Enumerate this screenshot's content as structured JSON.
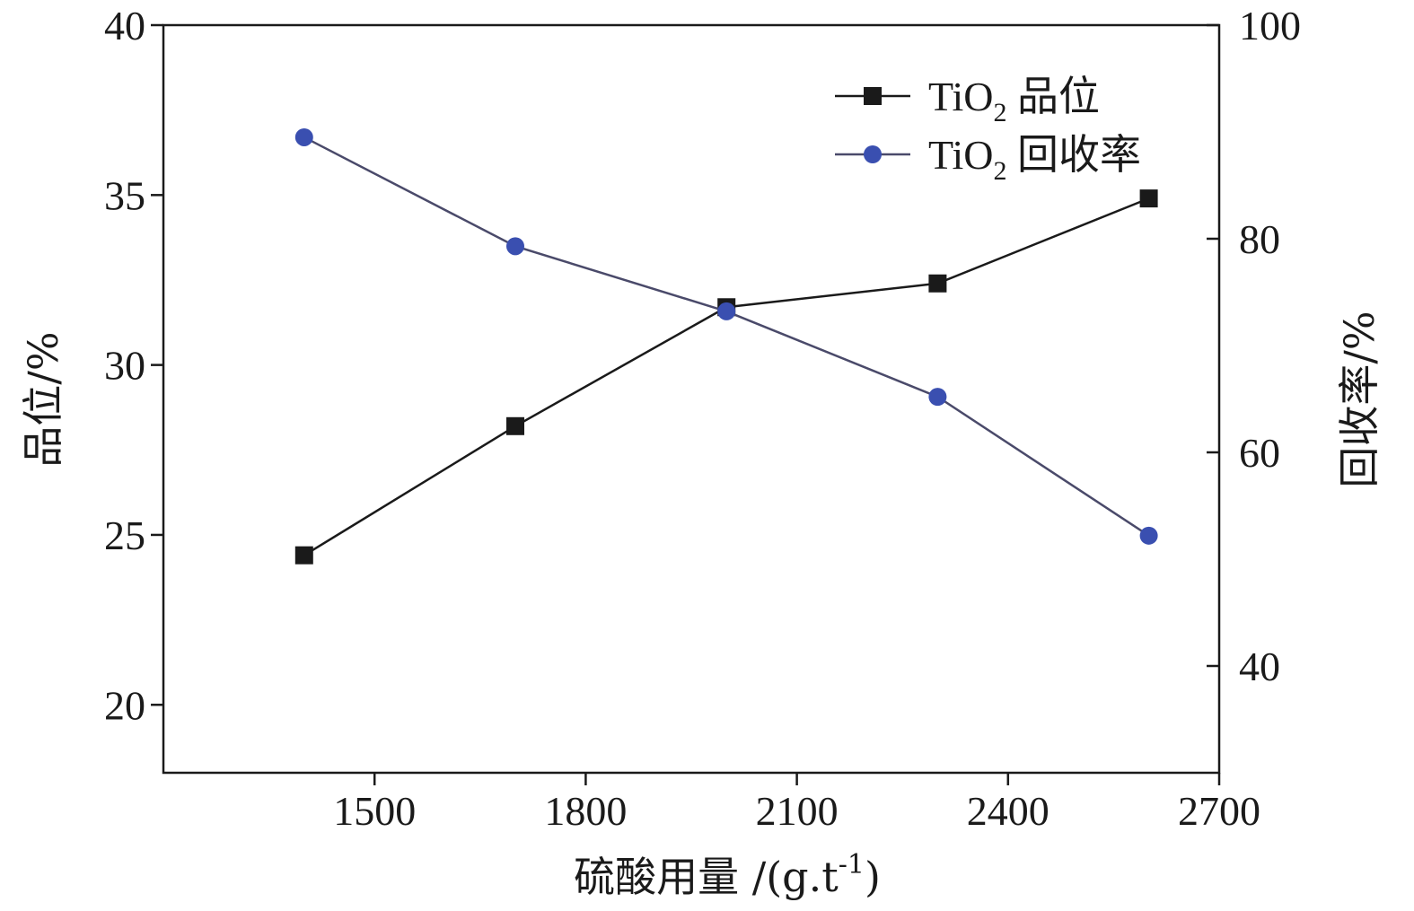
{
  "chart_data": {
    "type": "line",
    "xlabel": "硫酸用量 /(g.t",
    "xlabel_sup": "-1",
    "xlabel_end": ")",
    "ylabel_left": "品位/%",
    "ylabel_right": "回收率/%",
    "x": [
      1400,
      1700,
      2000,
      2300,
      2600
    ],
    "xlim": [
      1200,
      2700
    ],
    "x_ticks": [
      1500,
      1800,
      2100,
      2400,
      2700
    ],
    "ylim_left": [
      18,
      40
    ],
    "y_ticks_left": [
      20,
      25,
      30,
      35,
      40
    ],
    "ylim_right": [
      30,
      100
    ],
    "y_ticks_right": [
      40,
      60,
      80,
      100
    ],
    "grid": false,
    "legend_position": "top-right",
    "series": [
      {
        "name_main": "TiO",
        "name_sub": "2",
        "name_tail": " 品位",
        "axis": "left",
        "marker": "square",
        "color": "#1a1a1a",
        "values": [
          24.4,
          28.2,
          31.7,
          32.4,
          34.9
        ]
      },
      {
        "name_main": "TiO",
        "name_sub": "2",
        "name_tail": " 回收率",
        "axis": "right",
        "marker": "circle",
        "color": "#3a4fb0",
        "line_color": "#4a4a6a",
        "values": [
          89.5,
          79.3,
          73.2,
          65.2,
          52.2
        ]
      }
    ]
  }
}
